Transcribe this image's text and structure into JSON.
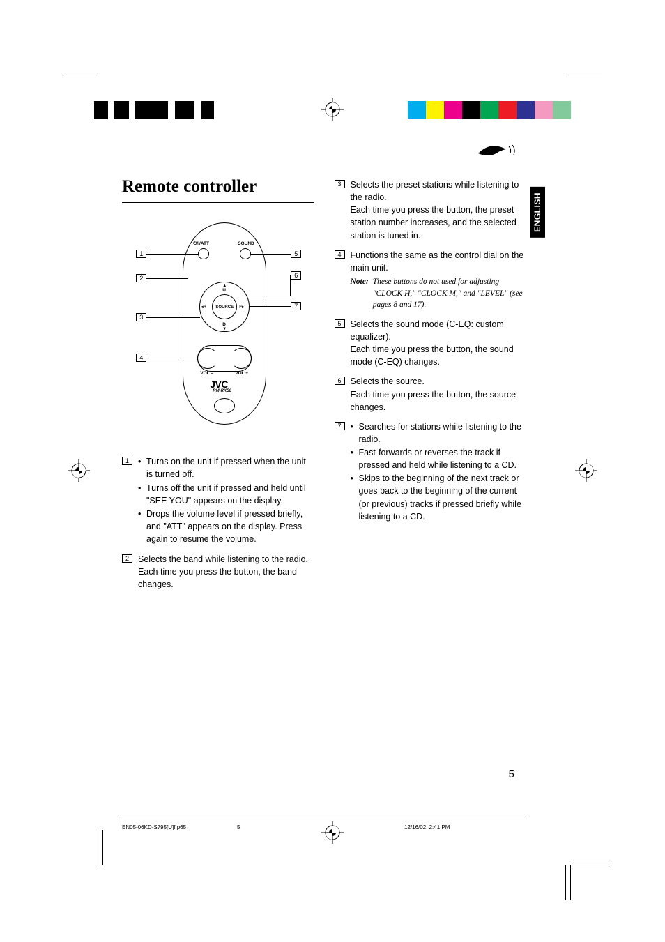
{
  "page": {
    "title": "Remote controller",
    "lang_tab": "ENGLISH",
    "page_number": "5"
  },
  "colorbar_left": [
    "#000000",
    "#ffffff",
    "#000000",
    "#ffffff",
    "#000000",
    "#ffffff",
    "#000000",
    "#ffffff",
    "#000000"
  ],
  "colorbar_right": [
    "#00aeef",
    "#fff200",
    "#ec008c",
    "#000000",
    "#00a651",
    "#ed1c24",
    "#2e3192",
    "#f49ac1",
    "#82ca9c"
  ],
  "remote": {
    "top_labels": {
      "power": "/I/ATT",
      "sound": "SOUND"
    },
    "dpad": {
      "center": "SOURCE",
      "up": "U",
      "down": "D",
      "left": "R",
      "right": "F"
    },
    "vol_minus": "VOL –",
    "vol_plus": "VOL +",
    "brand": "JVC",
    "model": "RM-RK50",
    "callouts_left": [
      "1",
      "2",
      "3",
      "4"
    ],
    "callouts_right": [
      "5",
      "6",
      "7"
    ]
  },
  "left_items": [
    {
      "num": "1",
      "bullets": [
        "Turns on the unit if pressed when the unit is turned off.",
        "Turns off the unit if pressed and held until \"SEE YOU\" appears on the display.",
        "Drops the volume level if pressed briefly, and \"ATT\" appears on the display. Press again to resume the volume."
      ]
    },
    {
      "num": "2",
      "text": "Selects the band while listening to the radio. Each time you press the button, the band changes."
    }
  ],
  "right_items": [
    {
      "num": "3",
      "text": "Selects the preset stations while listening to the radio.",
      "text2": "Each time you press the button, the preset station number increases, and the selected station is tuned in."
    },
    {
      "num": "4",
      "text": "Functions the same as the control dial on the main unit.",
      "note_label": "Note:",
      "note_text": "These buttons do not used for adjusting \"CLOCK H,\" \"CLOCK M,\" and \"LEVEL\" (see pages 8 and 17)."
    },
    {
      "num": "5",
      "text": "Selects the sound mode (C-EQ: custom equalizer).",
      "text2": "Each time you press the button, the sound mode (C-EQ) changes."
    },
    {
      "num": "6",
      "text": "Selects the source.",
      "text2": "Each time you press the button, the source changes."
    },
    {
      "num": "7",
      "bullets": [
        "Searches for stations while listening to the radio.",
        "Fast-forwards or reverses the track if pressed and held while listening to a CD.",
        "Skips to the beginning of the next track or goes back to the beginning of the current (or previous) tracks if pressed briefly while listening to a CD."
      ]
    }
  ],
  "footer": {
    "file": "EN05-06KD-S795[U]f.p65",
    "page": "5",
    "timestamp": "12/16/02, 2:41 PM"
  }
}
